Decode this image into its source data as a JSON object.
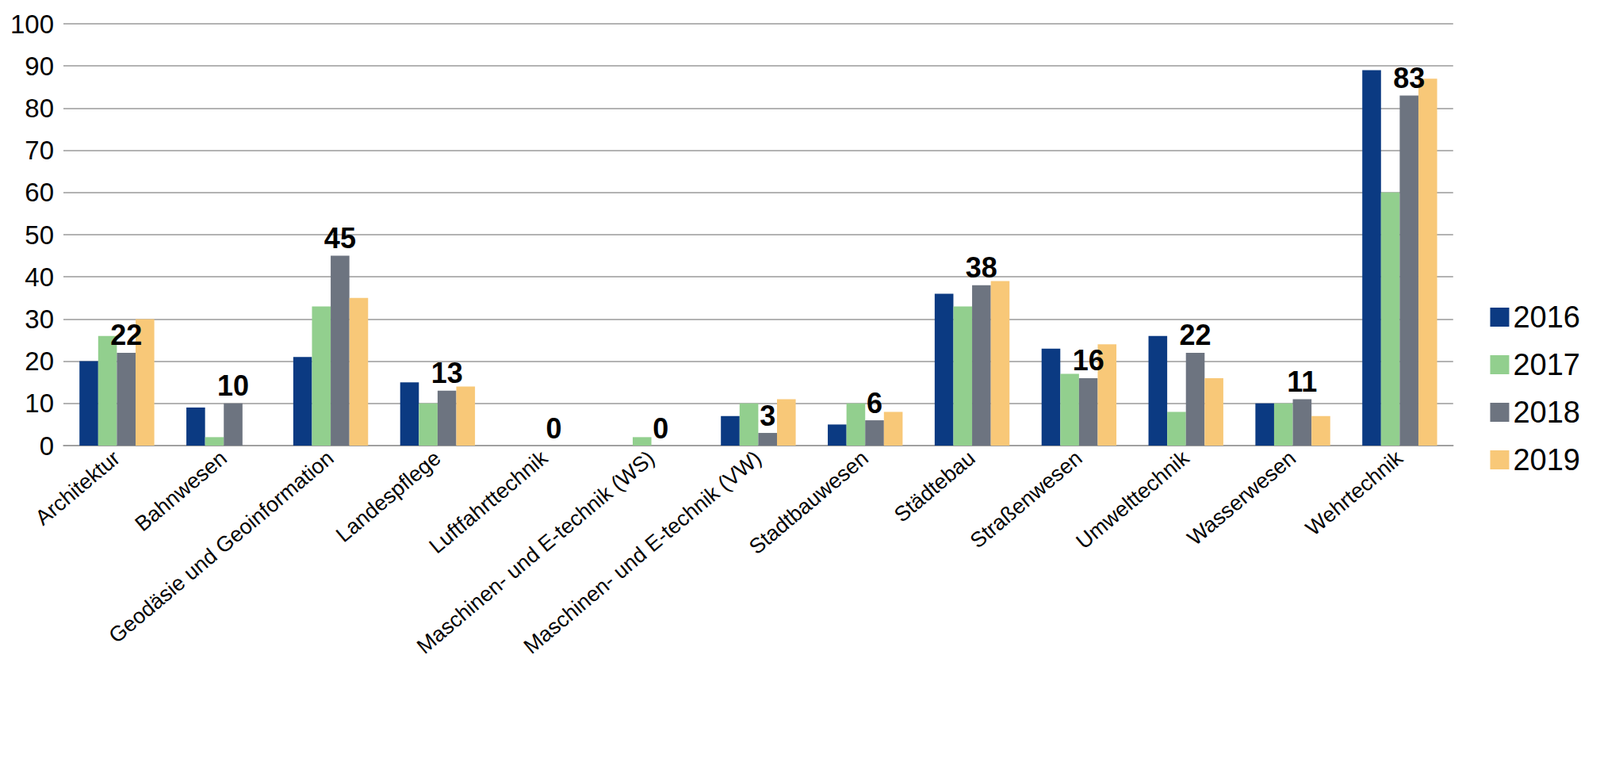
{
  "chart_data": {
    "type": "bar",
    "categories": [
      "Architektur",
      "Bahnwesen",
      "Geodäsie und Geoinformation",
      "Landespflege",
      "Luftfahrttechnik",
      "Maschinen- und E-technik (WS)",
      "Maschinen- und E-technik (VW)",
      "Stadtbauwesen",
      "Städtebau",
      "Straßenwesen",
      "Umwelttechnik",
      "Wasserwesen",
      "Wehrtechnik"
    ],
    "series": [
      {
        "name": "2016",
        "color": "#0b3a82",
        "values": [
          20,
          9,
          21,
          15,
          0,
          0,
          7,
          5,
          36,
          23,
          26,
          10,
          89
        ]
      },
      {
        "name": "2017",
        "color": "#92cf8e",
        "values": [
          26,
          2,
          33,
          10,
          0,
          2,
          10,
          10,
          33,
          17,
          8,
          10,
          60
        ]
      },
      {
        "name": "2018",
        "color": "#6d7480",
        "values": [
          22,
          10,
          45,
          13,
          0,
          0,
          3,
          6,
          38,
          16,
          22,
          11,
          83
        ],
        "data_labels": true
      },
      {
        "name": "2019",
        "color": "#f8c878",
        "values": [
          30,
          0,
          35,
          14,
          0,
          0,
          11,
          8,
          39,
          24,
          16,
          7,
          87
        ]
      }
    ],
    "ylim": [
      0,
      100
    ],
    "yticks": [
      0,
      10,
      20,
      30,
      40,
      50,
      60,
      70,
      80,
      90,
      100
    ],
    "grid": true,
    "legend": "right"
  }
}
